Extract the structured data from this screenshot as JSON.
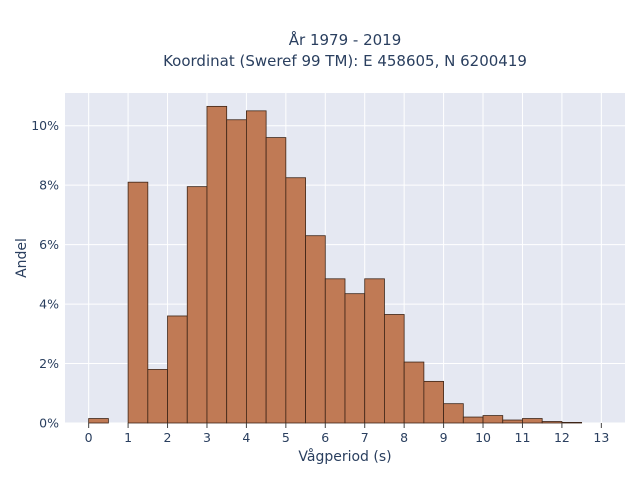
{
  "chart_data": {
    "type": "bar",
    "title_line1": "År 1979 - 2019",
    "title_line2": "Koordinat (Sweref 99 TM): E 458605, N 6200419",
    "xlabel": "Vågperiod (s)",
    "ylabel": "Andel",
    "bin_width": 0.5,
    "bin_starts": [
      0,
      0.5,
      1,
      1.5,
      2,
      2.5,
      3,
      3.5,
      4,
      4.5,
      5,
      5.5,
      6,
      6.5,
      7,
      7.5,
      8,
      8.5,
      9,
      9.5,
      10,
      10.5,
      11,
      11.5,
      12,
      12.5
    ],
    "values": [
      0.15,
      0,
      8.1,
      1.8,
      3.6,
      7.95,
      10.65,
      10.2,
      10.5,
      9.6,
      8.25,
      6.3,
      4.85,
      4.35,
      4.85,
      3.65,
      2.05,
      1.4,
      0.65,
      0.2,
      0.25,
      0.1,
      0.15,
      0.05,
      0.02,
      0
    ],
    "xlim": [
      -0.6,
      13.6
    ],
    "ylim": [
      0,
      11.1
    ],
    "x_ticks": [
      0,
      1,
      2,
      3,
      4,
      5,
      6,
      7,
      8,
      9,
      10,
      11,
      12,
      13
    ],
    "y_ticks": [
      0,
      2,
      4,
      6,
      8,
      10
    ],
    "y_tick_suffix": "%",
    "bar_color": "#c07a55",
    "bar_edge_color": "#3d2416",
    "plot_bg": "#e5e8f2",
    "grid": true
  }
}
